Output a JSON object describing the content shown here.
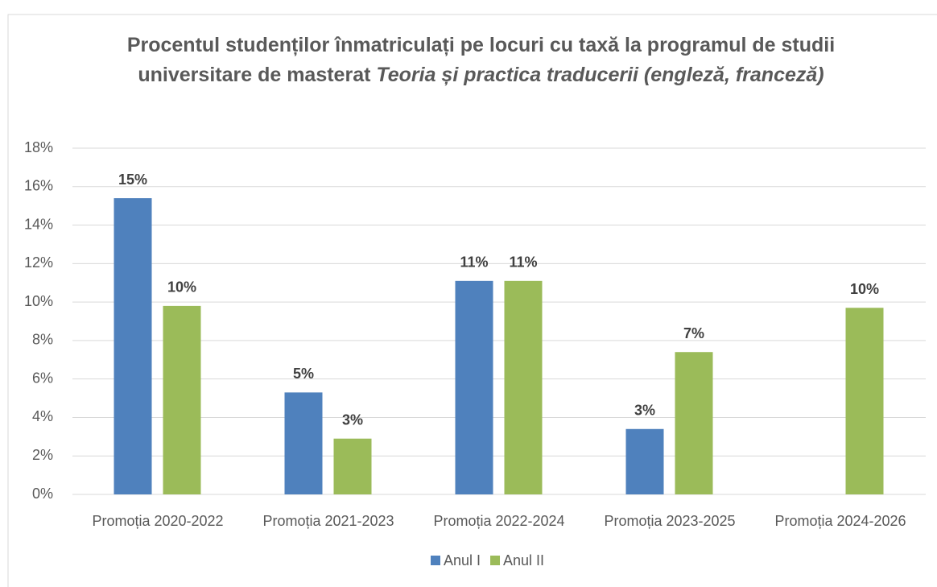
{
  "chart_data": {
    "type": "bar",
    "title": "Procentul studenților înmatriculați pe locuri cu taxă la programul de studii universitare de masterat",
    "title_italic": "Teoria și practica traducerii (engleză, franceză)",
    "categories": [
      "Promoția 2020-2022",
      "Promoția 2021-2023",
      "Promoția 2022-2024",
      "Promoția 2023-2025",
      "Promoția 2024-2026"
    ],
    "series": [
      {
        "name": "Anul I",
        "color": "#4f81bd",
        "values": [
          15.4,
          5.3,
          11.1,
          3.4,
          null
        ],
        "value_labels": [
          "15%",
          "5%",
          "11%",
          "3%",
          null
        ]
      },
      {
        "name": "Anul II",
        "color": "#9bbb59",
        "values": [
          9.8,
          2.9,
          11.1,
          7.4,
          9.7
        ],
        "value_labels": [
          "10%",
          "3%",
          "11%",
          "7%",
          "10%"
        ]
      }
    ],
    "ylim": [
      0,
      18
    ],
    "yticks": [
      {
        "value": 0,
        "label": "0%"
      },
      {
        "value": 2,
        "label": "2%"
      },
      {
        "value": 4,
        "label": "4%"
      },
      {
        "value": 6,
        "label": "6%"
      },
      {
        "value": 8,
        "label": "8%"
      },
      {
        "value": 10,
        "label": "10%"
      },
      {
        "value": 12,
        "label": "12%"
      },
      {
        "value": 14,
        "label": "14%"
      },
      {
        "value": 16,
        "label": "16%"
      },
      {
        "value": 18,
        "label": "18%"
      }
    ],
    "grid": true,
    "legend": "bottom"
  }
}
